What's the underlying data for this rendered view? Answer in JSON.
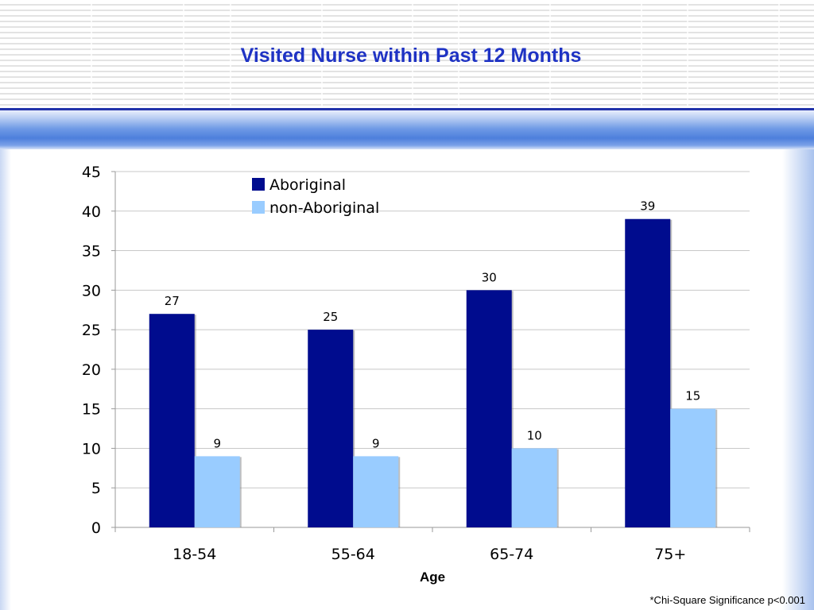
{
  "slide": {
    "title": "Visited Nurse within Past 12 Months",
    "footnote": "*Chi-Square Significance p<0.001"
  },
  "chart_data": {
    "type": "bar",
    "title": "",
    "xlabel": "Age",
    "ylabel": "",
    "categories": [
      "18-54",
      "55-64",
      "65-74",
      "75+"
    ],
    "series": [
      {
        "name": "Aboriginal",
        "values": [
          27,
          25,
          30,
          39
        ],
        "color": "#000c8e"
      },
      {
        "name": "non-Aboriginal",
        "values": [
          9,
          9,
          10,
          15
        ],
        "color": "#99ccff"
      }
    ],
    "ylim": [
      0,
      45
    ],
    "yticks": [
      0,
      5,
      10,
      15,
      20,
      25,
      30,
      35,
      40,
      45
    ],
    "grid": true,
    "legend": "top-left",
    "data_labels": true
  }
}
